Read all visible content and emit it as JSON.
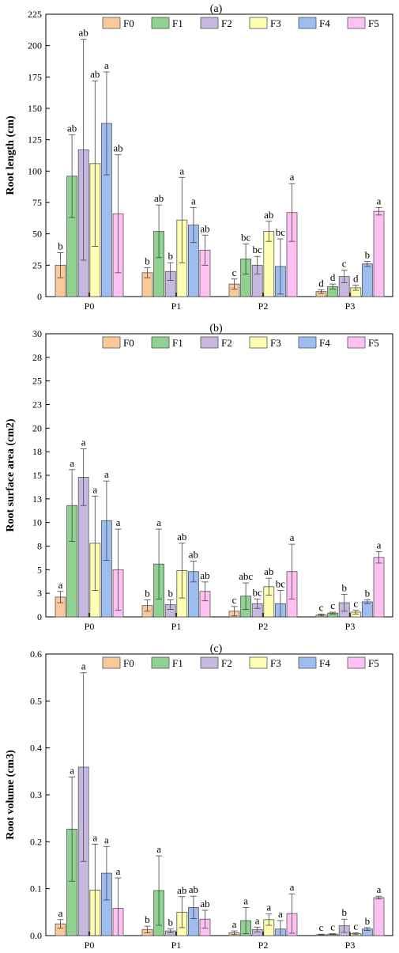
{
  "chart_data": [
    {
      "type": "bar",
      "panel_label": "(a)",
      "categories": [
        "P0",
        "P1",
        "P2",
        "P3"
      ],
      "ylabel": "Root length (cm)",
      "ylim": [
        0,
        225
      ],
      "yticks": [
        0,
        25,
        50,
        75,
        100,
        125,
        150,
        175,
        200,
        225
      ],
      "ytick_labels": [
        "0",
        "25",
        "50",
        "75",
        "100",
        "125",
        "150",
        "175",
        "200",
        "225"
      ],
      "legend_position": "top",
      "series": [
        {
          "name": "F0",
          "color": "#f9c99a",
          "values": [
            25,
            19,
            10,
            4
          ],
          "errors": [
            10,
            4,
            4,
            1.5
          ],
          "labels": [
            "b",
            "b",
            "c",
            "d"
          ]
        },
        {
          "name": "F1",
          "color": "#8fd18f",
          "values": [
            96,
            52,
            30,
            8
          ],
          "errors": [
            33,
            21,
            12,
            2
          ],
          "labels": [
            "ab",
            "ab",
            "bc",
            "d"
          ]
        },
        {
          "name": "F2",
          "color": "#c6b8df",
          "values": [
            117,
            20,
            25,
            16
          ],
          "errors": [
            88,
            7,
            7,
            5
          ],
          "labels": [
            "ab",
            "b",
            "bc",
            "c"
          ]
        },
        {
          "name": "F3",
          "color": "#ffffb3",
          "values": [
            106,
            61,
            52,
            7
          ],
          "errors": [
            66,
            34,
            8,
            2
          ],
          "labels": [
            "ab",
            "a",
            "ab",
            "d"
          ]
        },
        {
          "name": "F4",
          "color": "#9dbcf0",
          "values": [
            138,
            57,
            24,
            26
          ],
          "errors": [
            41,
            14,
            22,
            2
          ],
          "labels": [
            "a",
            "a",
            "bc",
            "b"
          ]
        },
        {
          "name": "F5",
          "color": "#ffc0f2",
          "values": [
            66,
            37,
            67,
            68
          ],
          "errors": [
            47,
            12,
            23,
            3
          ],
          "labels": [
            "ab",
            "ab",
            "a",
            "a"
          ]
        }
      ]
    },
    {
      "type": "bar",
      "panel_label": "(b)",
      "categories": [
        "P0",
        "P1",
        "P2",
        "P3"
      ],
      "ylabel": "Root surface area (cm2)",
      "ylim": [
        0,
        30
      ],
      "yticks": [
        0,
        2.5,
        5,
        7.5,
        10,
        12.5,
        15,
        17.5,
        20,
        22.5,
        25,
        27.5,
        30
      ],
      "ytick_labels": [
        "0",
        "3",
        "5",
        "8",
        "10",
        "13",
        "15",
        "18",
        "20",
        "23",
        "25",
        "28",
        "30"
      ],
      "legend_position": "top",
      "series": [
        {
          "name": "F0",
          "color": "#f9c99a",
          "values": [
            2.1,
            1.2,
            0.6,
            0.2
          ],
          "errors": [
            0.6,
            0.6,
            0.5,
            0.1
          ],
          "labels": [
            "a",
            "b",
            "c",
            "c"
          ]
        },
        {
          "name": "F1",
          "color": "#8fd18f",
          "values": [
            11.8,
            5.6,
            2.2,
            0.4
          ],
          "errors": [
            3.8,
            3.7,
            1.4,
            0.1
          ],
          "labels": [
            "a",
            "a",
            "abc",
            "c"
          ]
        },
        {
          "name": "F2",
          "color": "#c6b8df",
          "values": [
            14.8,
            1.3,
            1.4,
            1.5
          ],
          "errors": [
            3.0,
            0.5,
            0.5,
            0.9
          ],
          "labels": [
            "a",
            "b",
            "bc",
            "b"
          ]
        },
        {
          "name": "F3",
          "color": "#ffffb3",
          "values": [
            7.8,
            4.9,
            3.2,
            0.5
          ],
          "errors": [
            5.0,
            2.9,
            0.9,
            0.2
          ],
          "labels": [
            "a",
            "ab",
            "ab",
            "c"
          ]
        },
        {
          "name": "F4",
          "color": "#9dbcf0",
          "values": [
            10.2,
            4.8,
            1.4,
            1.6
          ],
          "errors": [
            4.2,
            1.1,
            1.4,
            0.2
          ],
          "labels": [
            "a",
            "ab",
            "bc",
            "b"
          ]
        },
        {
          "name": "F5",
          "color": "#ffc0f2",
          "values": [
            5.0,
            2.7,
            4.8,
            6.3
          ],
          "errors": [
            4.3,
            1.0,
            2.9,
            0.6
          ],
          "labels": [
            "a",
            "ab",
            "a",
            "a"
          ]
        }
      ]
    },
    {
      "type": "bar",
      "panel_label": "(c)",
      "categories": [
        "P0",
        "P1",
        "P2",
        "P3"
      ],
      "ylabel": "Root volume (cm3)",
      "ylim": [
        0,
        0.6
      ],
      "yticks": [
        0,
        0.1,
        0.2,
        0.3,
        0.4,
        0.5,
        0.6
      ],
      "ytick_labels": [
        "0.0",
        "0.1",
        "0.2",
        "0.3",
        "0.4",
        "0.5",
        "0.6"
      ],
      "legend_position": "top",
      "series": [
        {
          "name": "F0",
          "color": "#f9c99a",
          "values": [
            0.025,
            0.013,
            0.006,
            0.002
          ],
          "errors": [
            0.009,
            0.007,
            0.004,
            0.001
          ],
          "labels": [
            "a",
            "b",
            "a",
            "c"
          ]
        },
        {
          "name": "F1",
          "color": "#8fd18f",
          "values": [
            0.227,
            0.096,
            0.032,
            0.003
          ],
          "errors": [
            0.111,
            0.074,
            0.028,
            0.001
          ],
          "labels": [
            "a",
            "a",
            "a",
            "c"
          ]
        },
        {
          "name": "F2",
          "color": "#c6b8df",
          "values": [
            0.359,
            0.01,
            0.013,
            0.021
          ],
          "errors": [
            0.201,
            0.004,
            0.005,
            0.014
          ],
          "labels": [
            "a",
            "b",
            "a",
            "b"
          ]
        },
        {
          "name": "F3",
          "color": "#ffffb3",
          "values": [
            0.097,
            0.05,
            0.034,
            0.004
          ],
          "errors": [
            0.098,
            0.033,
            0.012,
            0.002
          ],
          "labels": [
            "a",
            "ab",
            "a",
            "c"
          ]
        },
        {
          "name": "F4",
          "color": "#9dbcf0",
          "values": [
            0.133,
            0.06,
            0.014,
            0.014
          ],
          "errors": [
            0.057,
            0.024,
            0.018,
            0.003
          ],
          "labels": [
            "a",
            "ab",
            "a",
            "b"
          ]
        },
        {
          "name": "F5",
          "color": "#ffc0f2",
          "values": [
            0.058,
            0.035,
            0.047,
            0.081
          ],
          "errors": [
            0.065,
            0.019,
            0.042,
            0.003
          ],
          "labels": [
            "a",
            "ab",
            "a",
            "a"
          ]
        }
      ]
    }
  ]
}
